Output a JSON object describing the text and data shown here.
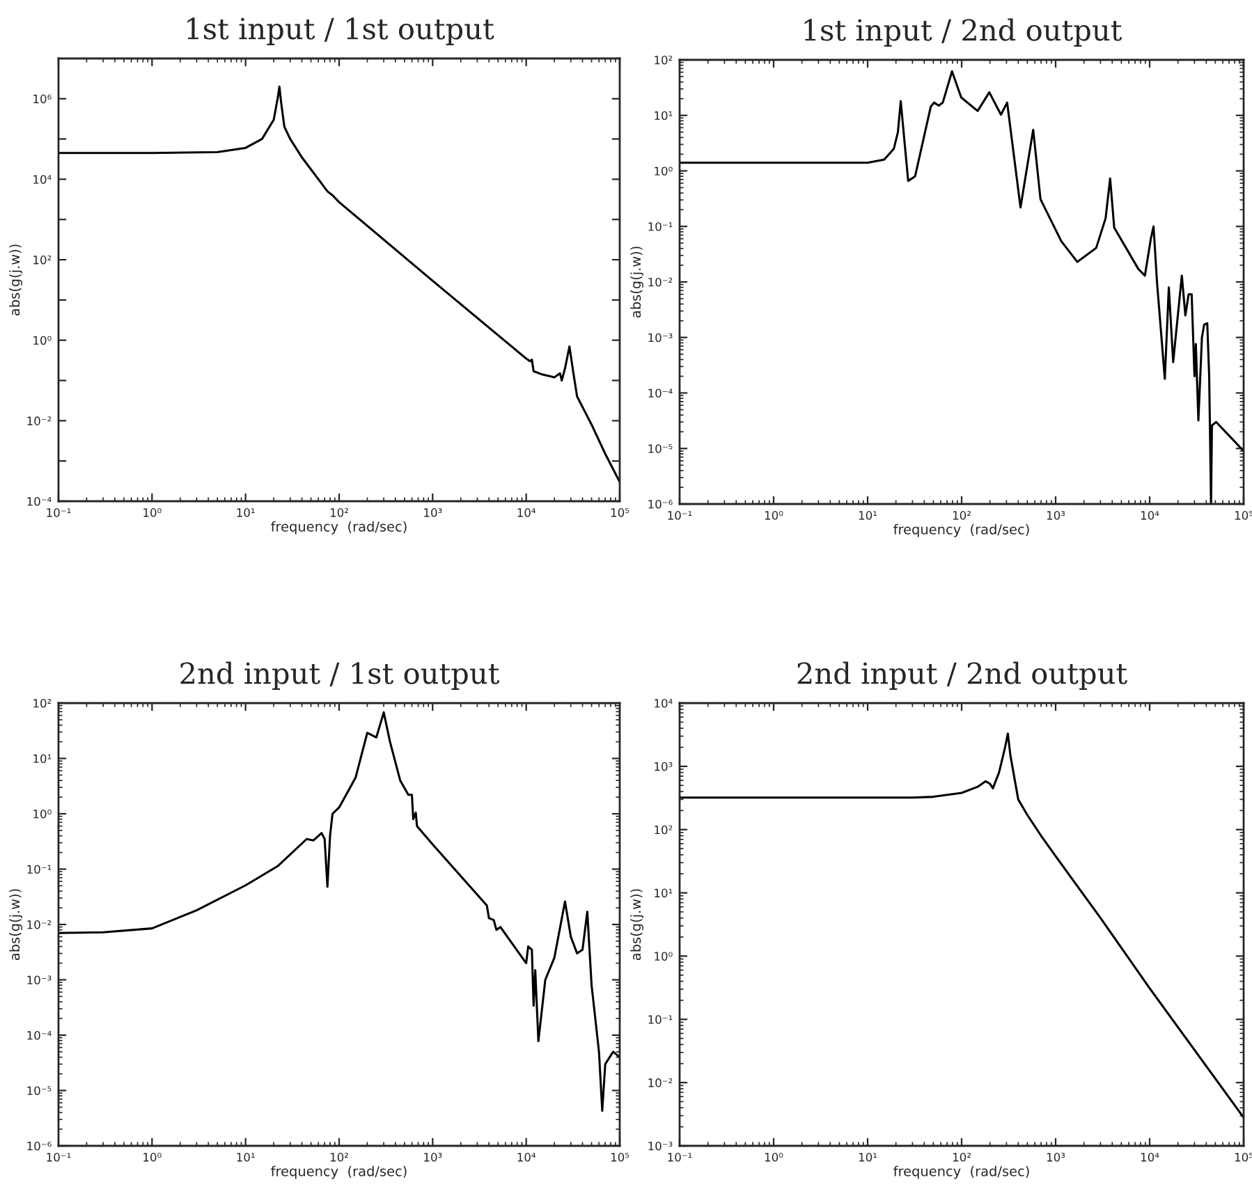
{
  "chart_data": [
    {
      "type": "line",
      "title": "1st input / 1st output",
      "xlabel": "frequency  (rad/sec)",
      "ylabel": "abs(g(j.w))",
      "log": "xy",
      "xlim": [
        0.1,
        100000
      ],
      "ylim": [
        0.0001,
        10000000
      ],
      "xticks": [
        {
          "value": 0.1,
          "label": "10⁻¹"
        },
        {
          "value": 1,
          "label": "10⁰"
        },
        {
          "value": 10,
          "label": "10¹"
        },
        {
          "value": 100,
          "label": "10²"
        },
        {
          "value": 1000,
          "label": "10³"
        },
        {
          "value": 10000,
          "label": "10⁴"
        },
        {
          "value": 100000,
          "label": "10⁵"
        }
      ],
      "yticks": [
        {
          "value": 0.0001,
          "label": "10⁻⁴"
        },
        {
          "value": 0.001,
          "label": null
        },
        {
          "value": 0.01,
          "label": "10⁻²"
        },
        {
          "value": 0.1,
          "label": null
        },
        {
          "value": 1,
          "label": "10⁰"
        },
        {
          "value": 10,
          "label": null
        },
        {
          "value": 100,
          "label": "10²"
        },
        {
          "value": 1000,
          "label": null
        },
        {
          "value": 10000,
          "label": "10⁴"
        },
        {
          "value": 100000,
          "label": null
        },
        {
          "value": 1000000,
          "label": "10⁶"
        }
      ],
      "series": [
        {
          "color": "#000000",
          "x": [
            0.1,
            1,
            5,
            10,
            15,
            20,
            22,
            23,
            24,
            26,
            30,
            40,
            60,
            75,
            85,
            100,
            1000,
            10000,
            11000,
            11500,
            12000,
            15000,
            20000,
            23000,
            24000,
            26000,
            29000,
            32000,
            35000,
            50000,
            70000,
            100000
          ],
          "values": [
            45000,
            45000,
            47000,
            60000,
            100000,
            300000,
            1000000,
            2000000,
            800000,
            200000,
            100000,
            35000,
            10000,
            5000,
            4000,
            2700,
            30,
            0.35,
            0.3,
            0.33,
            0.17,
            0.14,
            0.12,
            0.15,
            0.1,
            0.2,
            0.7,
            0.15,
            0.04,
            0.008,
            0.0015,
            0.0003
          ]
        }
      ]
    },
    {
      "type": "line",
      "title": "1st input / 2nd output",
      "xlabel": "frequency  (rad/sec)",
      "ylabel": "abs(g(j.w))",
      "log": "xy",
      "xlim": [
        0.1,
        100000
      ],
      "ylim": [
        1e-06,
        100
      ],
      "xticks": [
        {
          "value": 0.1,
          "label": "10⁻¹"
        },
        {
          "value": 1,
          "label": "10⁰"
        },
        {
          "value": 10,
          "label": "10¹"
        },
        {
          "value": 100,
          "label": "10²"
        },
        {
          "value": 1000,
          "label": "10³"
        },
        {
          "value": 10000,
          "label": "10⁴"
        },
        {
          "value": 100000,
          "label": "10⁵"
        }
      ],
      "yticks": [
        {
          "value": 1e-06,
          "label": "10⁻⁶"
        },
        {
          "value": 1e-05,
          "label": "10⁻⁵"
        },
        {
          "value": 0.0001,
          "label": "10⁻⁴"
        },
        {
          "value": 0.001,
          "label": "10⁻³"
        },
        {
          "value": 0.01,
          "label": "10⁻²"
        },
        {
          "value": 0.1,
          "label": "10⁻¹"
        },
        {
          "value": 1,
          "label": "10⁰"
        },
        {
          "value": 10,
          "label": "10¹"
        },
        {
          "value": 100,
          "label": "10²"
        }
      ],
      "series": [
        {
          "color": "#000000",
          "x": [
            0.1,
            10,
            15,
            19,
            21,
            22.5,
            27,
            32,
            47,
            51,
            57,
            63,
            79,
            99,
            148,
            197,
            262,
            305,
            423,
            577,
            690,
            1150,
            1700,
            2700,
            3400,
            3800,
            4200,
            7600,
            8900,
            10300,
            11000,
            12000,
            14500,
            16000,
            17800,
            22000,
            24000,
            26000,
            28000,
            30000,
            31000,
            33000,
            36000,
            38000,
            41000,
            43000,
            45000,
            46000,
            51000,
            100000
          ],
          "values": [
            1.4,
            1.4,
            1.6,
            2.5,
            5,
            18,
            0.66,
            0.8,
            14.5,
            17,
            15,
            17,
            62,
            21,
            12,
            26,
            10.3,
            17,
            0.22,
            5.5,
            0.31,
            0.054,
            0.023,
            0.041,
            0.14,
            0.73,
            0.095,
            0.017,
            0.013,
            0.06,
            0.1,
            0.0095,
            0.00018,
            0.008,
            0.00036,
            0.013,
            0.0025,
            0.006,
            0.006,
            0.0002,
            0.00076,
            3.2e-05,
            0.001,
            0.0017,
            0.0018,
            0.0002,
            1e-06,
            2.6e-05,
            3e-05,
            9e-06
          ]
        }
      ]
    },
    {
      "type": "line",
      "title": "2nd input / 1st output",
      "xlabel": "frequency  (rad/sec)",
      "ylabel": "abs(g(j.w))",
      "log": "xy",
      "xlim": [
        0.1,
        100000
      ],
      "ylim": [
        1e-06,
        100
      ],
      "xticks": [
        {
          "value": 0.1,
          "label": "10⁻¹"
        },
        {
          "value": 1,
          "label": "10⁰"
        },
        {
          "value": 10,
          "label": "10¹"
        },
        {
          "value": 100,
          "label": "10²"
        },
        {
          "value": 1000,
          "label": "10³"
        },
        {
          "value": 10000,
          "label": "10⁴"
        },
        {
          "value": 100000,
          "label": "10⁵"
        }
      ],
      "yticks": [
        {
          "value": 1e-06,
          "label": "10⁻⁶"
        },
        {
          "value": 1e-05,
          "label": "10⁻⁵"
        },
        {
          "value": 0.0001,
          "label": "10⁻⁴"
        },
        {
          "value": 0.001,
          "label": "10⁻³"
        },
        {
          "value": 0.01,
          "label": "10⁻²"
        },
        {
          "value": 0.1,
          "label": "10⁻¹"
        },
        {
          "value": 1,
          "label": "10⁰"
        },
        {
          "value": 10,
          "label": "10¹"
        },
        {
          "value": 100,
          "label": "10²"
        }
      ],
      "series": [
        {
          "color": "#000000",
          "x": [
            0.1,
            0.3,
            1,
            3,
            10,
            22,
            45,
            53,
            65,
            70,
            75,
            80,
            85,
            100,
            150,
            200,
            250,
            300,
            350,
            450,
            550,
            600,
            620,
            660,
            680,
            1000,
            3800,
            4000,
            4500,
            4800,
            5300,
            10000,
            10500,
            11500,
            12000,
            12500,
            13500,
            16000,
            20000,
            26000,
            30000,
            35000,
            40000,
            45000,
            50000,
            60000,
            65000,
            70000,
            85000,
            100000
          ],
          "values": [
            0.007,
            0.0072,
            0.0085,
            0.018,
            0.051,
            0.113,
            0.35,
            0.33,
            0.45,
            0.35,
            0.048,
            0.4,
            1.0,
            1.3,
            4.5,
            29,
            24,
            68,
            20,
            4,
            2.2,
            2.2,
            0.8,
            1.05,
            0.6,
            0.28,
            0.022,
            0.013,
            0.012,
            0.008,
            0.009,
            0.002,
            0.004,
            0.0035,
            0.00034,
            0.0015,
            7.8e-05,
            0.001,
            0.0025,
            0.026,
            0.006,
            0.003,
            0.0035,
            0.017,
            0.0008,
            5e-05,
            4.3e-06,
            3e-05,
            5e-05,
            4e-05
          ]
        }
      ]
    },
    {
      "type": "line",
      "title": "2nd input / 2nd output",
      "xlabel": "frequency  (rad/sec)",
      "ylabel": "abs(g(j.w))",
      "log": "xy",
      "xlim": [
        0.1,
        100000
      ],
      "ylim": [
        0.001,
        10000
      ],
      "xticks": [
        {
          "value": 0.1,
          "label": "10⁻¹"
        },
        {
          "value": 1,
          "label": "10⁰"
        },
        {
          "value": 10,
          "label": "10¹"
        },
        {
          "value": 100,
          "label": "10²"
        },
        {
          "value": 1000,
          "label": "10³"
        },
        {
          "value": 10000,
          "label": "10⁴"
        },
        {
          "value": 100000,
          "label": "10⁵"
        }
      ],
      "yticks": [
        {
          "value": 0.001,
          "label": "10⁻³"
        },
        {
          "value": 0.01,
          "label": "10⁻²"
        },
        {
          "value": 0.1,
          "label": "10⁻¹"
        },
        {
          "value": 1,
          "label": "10⁰"
        },
        {
          "value": 10,
          "label": "10¹"
        },
        {
          "value": 100,
          "label": "10²"
        },
        {
          "value": 1000,
          "label": "10³"
        },
        {
          "value": 10000,
          "label": "10⁴"
        }
      ],
      "series": [
        {
          "color": "#000000",
          "x": [
            0.1,
            30,
            50,
            100,
            150,
            180,
            200,
            215,
            250,
            290,
            310,
            330,
            400,
            500,
            700,
            1000,
            3000,
            10000,
            100000
          ],
          "values": [
            320,
            320,
            330,
            380,
            480,
            580,
            530,
            450,
            800,
            2000,
            3300,
            1500,
            300,
            170,
            80,
            38,
            4,
            0.31,
            0.0028
          ]
        }
      ]
    }
  ]
}
